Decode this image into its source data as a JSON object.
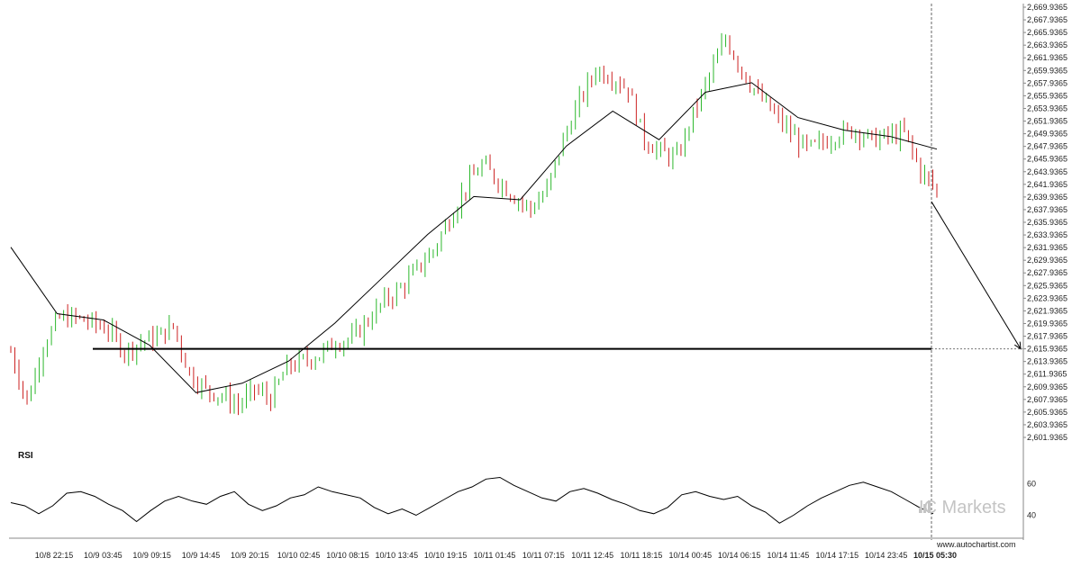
{
  "chart_data": {
    "type": "candlestick",
    "price_axis": {
      "ylim": [
        2601.9365,
        2669.9365
      ],
      "tick_labels": [
        "2,669.9365",
        "2,667.9365",
        "2,665.9365",
        "2,663.9365",
        "2,661.9365",
        "2,659.9365",
        "2,657.9365",
        "2,655.9365",
        "2,653.9365",
        "2,651.9365",
        "2,649.9365",
        "2,647.9365",
        "2,645.9365",
        "2,643.9365",
        "2,641.9365",
        "2,639.9365",
        "2,637.9365",
        "2,635.9365",
        "2,633.9365",
        "2,631.9365",
        "2,629.9365",
        "2,627.9365",
        "2,625.9365",
        "2,623.9365",
        "2,621.9365",
        "2,619.9365",
        "2,617.9365",
        "2,615.9365",
        "2,613.9365",
        "2,611.9365",
        "2,609.9365",
        "2,607.9365",
        "2,605.9365",
        "2,603.9365",
        "2,601.9365"
      ]
    },
    "x_axis": {
      "tick_labels": [
        "10/8 22:15",
        "10/9 03:45",
        "10/9 09:15",
        "10/9 14:45",
        "10/9 20:15",
        "10/10 02:45",
        "10/10 08:15",
        "10/10 13:45",
        "10/10 19:15",
        "10/11 01:45",
        "10/11 07:15",
        "10/11 12:45",
        "10/11 18:15",
        "10/14 00:45",
        "10/14 06:15",
        "10/14 11:45",
        "10/14 17:15",
        "10/14 23:45",
        "10/15 05:30"
      ],
      "highlighted_label": "10/15 05:30"
    },
    "support_level": 2615.9365,
    "projection": {
      "from": 2639.2,
      "to": 2615.9365
    },
    "price_path": [
      [
        0,
        2615.5
      ],
      [
        4,
        2607.5
      ],
      [
        8,
        2616.5
      ],
      [
        12,
        2620.8
      ],
      [
        16,
        2620.8
      ],
      [
        20,
        2620.0
      ],
      [
        24,
        2619.0
      ],
      [
        28,
        2615.5
      ],
      [
        32,
        2617.0
      ],
      [
        36,
        2617.8
      ],
      [
        40,
        2619.5
      ],
      [
        44,
        2612.0
      ],
      [
        48,
        2609.5
      ],
      [
        52,
        2608.5
      ],
      [
        56,
        2607.0
      ],
      [
        60,
        2609.5
      ],
      [
        64,
        2608.0
      ],
      [
        68,
        2613.0
      ],
      [
        72,
        2614.0
      ],
      [
        76,
        2615.0
      ],
      [
        80,
        2617.0
      ],
      [
        84,
        2617.5
      ],
      [
        88,
        2620.5
      ],
      [
        92,
        2623.5
      ],
      [
        96,
        2625.5
      ],
      [
        100,
        2628.5
      ],
      [
        104,
        2631.5
      ],
      [
        108,
        2636.5
      ],
      [
        112,
        2641.5
      ],
      [
        116,
        2645.0
      ],
      [
        120,
        2642.5
      ],
      [
        124,
        2640.0
      ],
      [
        128,
        2638.0
      ],
      [
        132,
        2641.0
      ],
      [
        136,
        2649.0
      ],
      [
        140,
        2655.0
      ],
      [
        144,
        2660.0
      ],
      [
        148,
        2659.0
      ],
      [
        152,
        2657.0
      ],
      [
        156,
        2649.0
      ],
      [
        160,
        2647.0
      ],
      [
        164,
        2646.0
      ],
      [
        168,
        2653.0
      ],
      [
        172,
        2659.0
      ],
      [
        176,
        2665.0
      ],
      [
        180,
        2660.0
      ],
      [
        184,
        2656.0
      ],
      [
        188,
        2653.0
      ],
      [
        192,
        2650.0
      ],
      [
        196,
        2647.5
      ],
      [
        200,
        2648.5
      ],
      [
        204,
        2650.0
      ],
      [
        208,
        2650.5
      ],
      [
        212,
        2649.0
      ],
      [
        216,
        2649.5
      ],
      [
        220,
        2650.0
      ],
      [
        224,
        2644.0
      ],
      [
        228,
        2641.0
      ]
    ],
    "moving_average": [
      [
        0,
        2632
      ],
      [
        20,
        2621.5
      ],
      [
        40,
        2620.5
      ],
      [
        60,
        2616.5
      ],
      [
        80,
        2609.0
      ],
      [
        100,
        2610.5
      ],
      [
        120,
        2614.0
      ],
      [
        140,
        2620.0
      ],
      [
        160,
        2627.0
      ],
      [
        180,
        2634.0
      ],
      [
        200,
        2640.0
      ],
      [
        220,
        2639.5
      ],
      [
        240,
        2648.0
      ],
      [
        260,
        2653.5
      ],
      [
        280,
        2649.0
      ],
      [
        300,
        2656.5
      ],
      [
        320,
        2658.0
      ],
      [
        340,
        2652.5
      ],
      [
        360,
        2650.5
      ],
      [
        380,
        2649.5
      ],
      [
        400,
        2647.5
      ]
    ],
    "rsi": {
      "title": "RSI",
      "ylim": [
        30,
        70
      ],
      "tick_labels": [
        "60",
        "40"
      ],
      "path": [
        [
          0,
          48
        ],
        [
          3,
          46
        ],
        [
          6,
          41
        ],
        [
          9,
          46
        ],
        [
          12,
          54
        ],
        [
          15,
          55
        ],
        [
          18,
          52
        ],
        [
          21,
          47
        ],
        [
          24,
          43
        ],
        [
          27,
          36
        ],
        [
          30,
          43
        ],
        [
          33,
          49
        ],
        [
          36,
          52
        ],
        [
          39,
          49
        ],
        [
          42,
          47
        ],
        [
          45,
          52
        ],
        [
          48,
          55
        ],
        [
          51,
          47
        ],
        [
          54,
          43
        ],
        [
          57,
          46
        ],
        [
          60,
          51
        ],
        [
          63,
          53
        ],
        [
          66,
          58
        ],
        [
          69,
          55
        ],
        [
          72,
          53
        ],
        [
          75,
          51
        ],
        [
          78,
          45
        ],
        [
          81,
          41
        ],
        [
          84,
          44
        ],
        [
          87,
          40
        ],
        [
          90,
          45
        ],
        [
          93,
          50
        ],
        [
          96,
          55
        ],
        [
          99,
          58
        ],
        [
          102,
          63
        ],
        [
          105,
          64
        ],
        [
          108,
          59
        ],
        [
          111,
          55
        ],
        [
          114,
          51
        ],
        [
          117,
          49
        ],
        [
          120,
          55
        ],
        [
          123,
          57
        ],
        [
          126,
          54
        ],
        [
          129,
          50
        ],
        [
          132,
          47
        ],
        [
          135,
          43
        ],
        [
          138,
          41
        ],
        [
          141,
          45
        ],
        [
          144,
          53
        ],
        [
          147,
          55
        ],
        [
          150,
          52
        ],
        [
          153,
          50
        ],
        [
          156,
          52
        ],
        [
          159,
          46
        ],
        [
          162,
          42
        ],
        [
          165,
          35
        ],
        [
          168,
          40
        ],
        [
          171,
          46
        ],
        [
          174,
          51
        ],
        [
          177,
          55
        ],
        [
          180,
          59
        ],
        [
          183,
          61
        ],
        [
          186,
          58
        ],
        [
          189,
          55
        ],
        [
          192,
          50
        ],
        [
          195,
          45
        ],
        [
          198,
          41
        ]
      ]
    }
  },
  "branding": {
    "watermark": "IC Markets",
    "credit": "www.autochartist.com"
  },
  "colors": {
    "bull_candle": "#2db82d",
    "bear_candle": "#cc2222",
    "line": "#000000",
    "grid_border": "#cccccc"
  }
}
